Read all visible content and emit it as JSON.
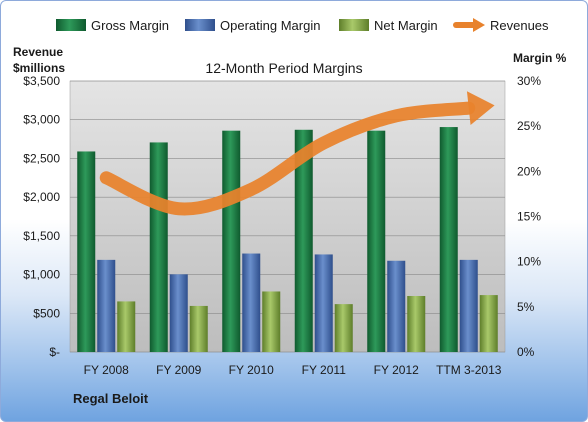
{
  "chart_data": {
    "type": "bar",
    "title": "12-Month Period Margins",
    "company": "Regal Beloit",
    "categories": [
      "FY 2008",
      "FY 2009",
      "FY 2010",
      "FY 2011",
      "FY 2012",
      "TTM 3-2013"
    ],
    "y_left": {
      "label_line1": "Revenue",
      "label_line2": "$millions",
      "range": [
        0,
        3500
      ],
      "ticks": [
        0,
        500,
        1000,
        1500,
        2000,
        2500,
        3000,
        3500
      ],
      "tick_labels": [
        "$-",
        "$500",
        "$1,000",
        "$1,500",
        "$2,000",
        "$2,500",
        "$3,000",
        "$3,500"
      ]
    },
    "y_right": {
      "label": "Margin %",
      "range": [
        0,
        30
      ],
      "ticks": [
        0,
        5,
        10,
        15,
        20,
        25,
        30
      ],
      "tick_labels": [
        "0%",
        "5%",
        "10%",
        "15%",
        "20%",
        "25%",
        "30%"
      ]
    },
    "series": [
      {
        "name": "Gross Margin",
        "axis": "right",
        "kind": "bar",
        "color": "#1e7b45",
        "values": [
          22.2,
          23.2,
          24.5,
          24.6,
          24.5,
          24.9
        ]
      },
      {
        "name": "Operating Margin",
        "axis": "right",
        "kind": "bar",
        "color": "#4a6fb0",
        "values": [
          10.2,
          8.6,
          10.9,
          10.8,
          10.1,
          10.2
        ]
      },
      {
        "name": "Net Margin",
        "axis": "right",
        "kind": "bar",
        "color": "#8db04a",
        "values": [
          5.6,
          5.1,
          6.7,
          5.3,
          6.2,
          6.3
        ]
      },
      {
        "name": "Revenues",
        "axis": "left",
        "kind": "trend-arrow",
        "color": "#e8822c",
        "values": [
          2250,
          1850,
          2100,
          2700,
          3050,
          3150
        ]
      }
    ],
    "grid": true,
    "legend_position": "top"
  }
}
